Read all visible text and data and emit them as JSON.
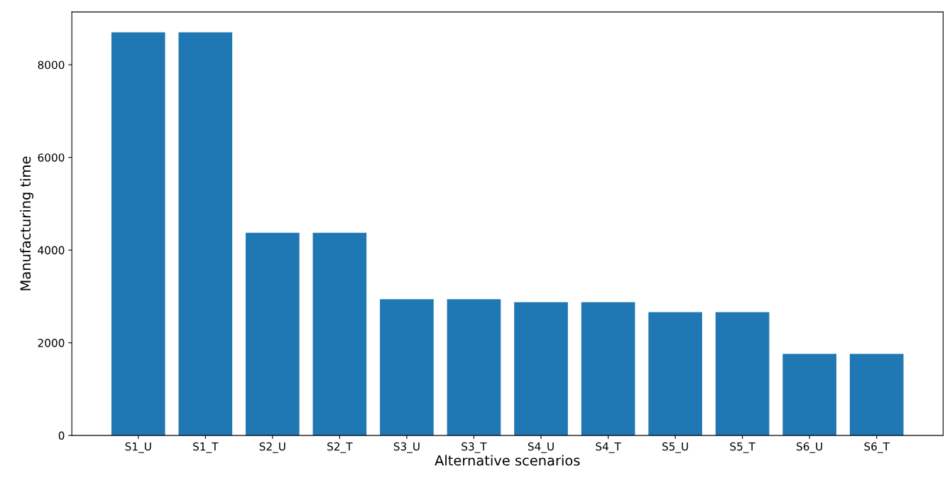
{
  "chart_data": {
    "type": "bar",
    "xlabel": "Alternative scenarios",
    "ylabel": "Manufacturing time",
    "categories": [
      "S1_U",
      "S1_T",
      "S2_U",
      "S2_T",
      "S3_U",
      "S3_T",
      "S4_U",
      "S4_T",
      "S5_U",
      "S5_T",
      "S6_U",
      "S6_T"
    ],
    "values": [
      8700,
      8700,
      4375,
      4375,
      2940,
      2940,
      2875,
      2875,
      2660,
      2660,
      1760,
      1760
    ],
    "color": "#1f77b4",
    "ylim": [
      0,
      9140
    ],
    "yticks": [
      0,
      2000,
      4000,
      6000,
      8000
    ],
    "grid": false,
    "legend": false
  }
}
